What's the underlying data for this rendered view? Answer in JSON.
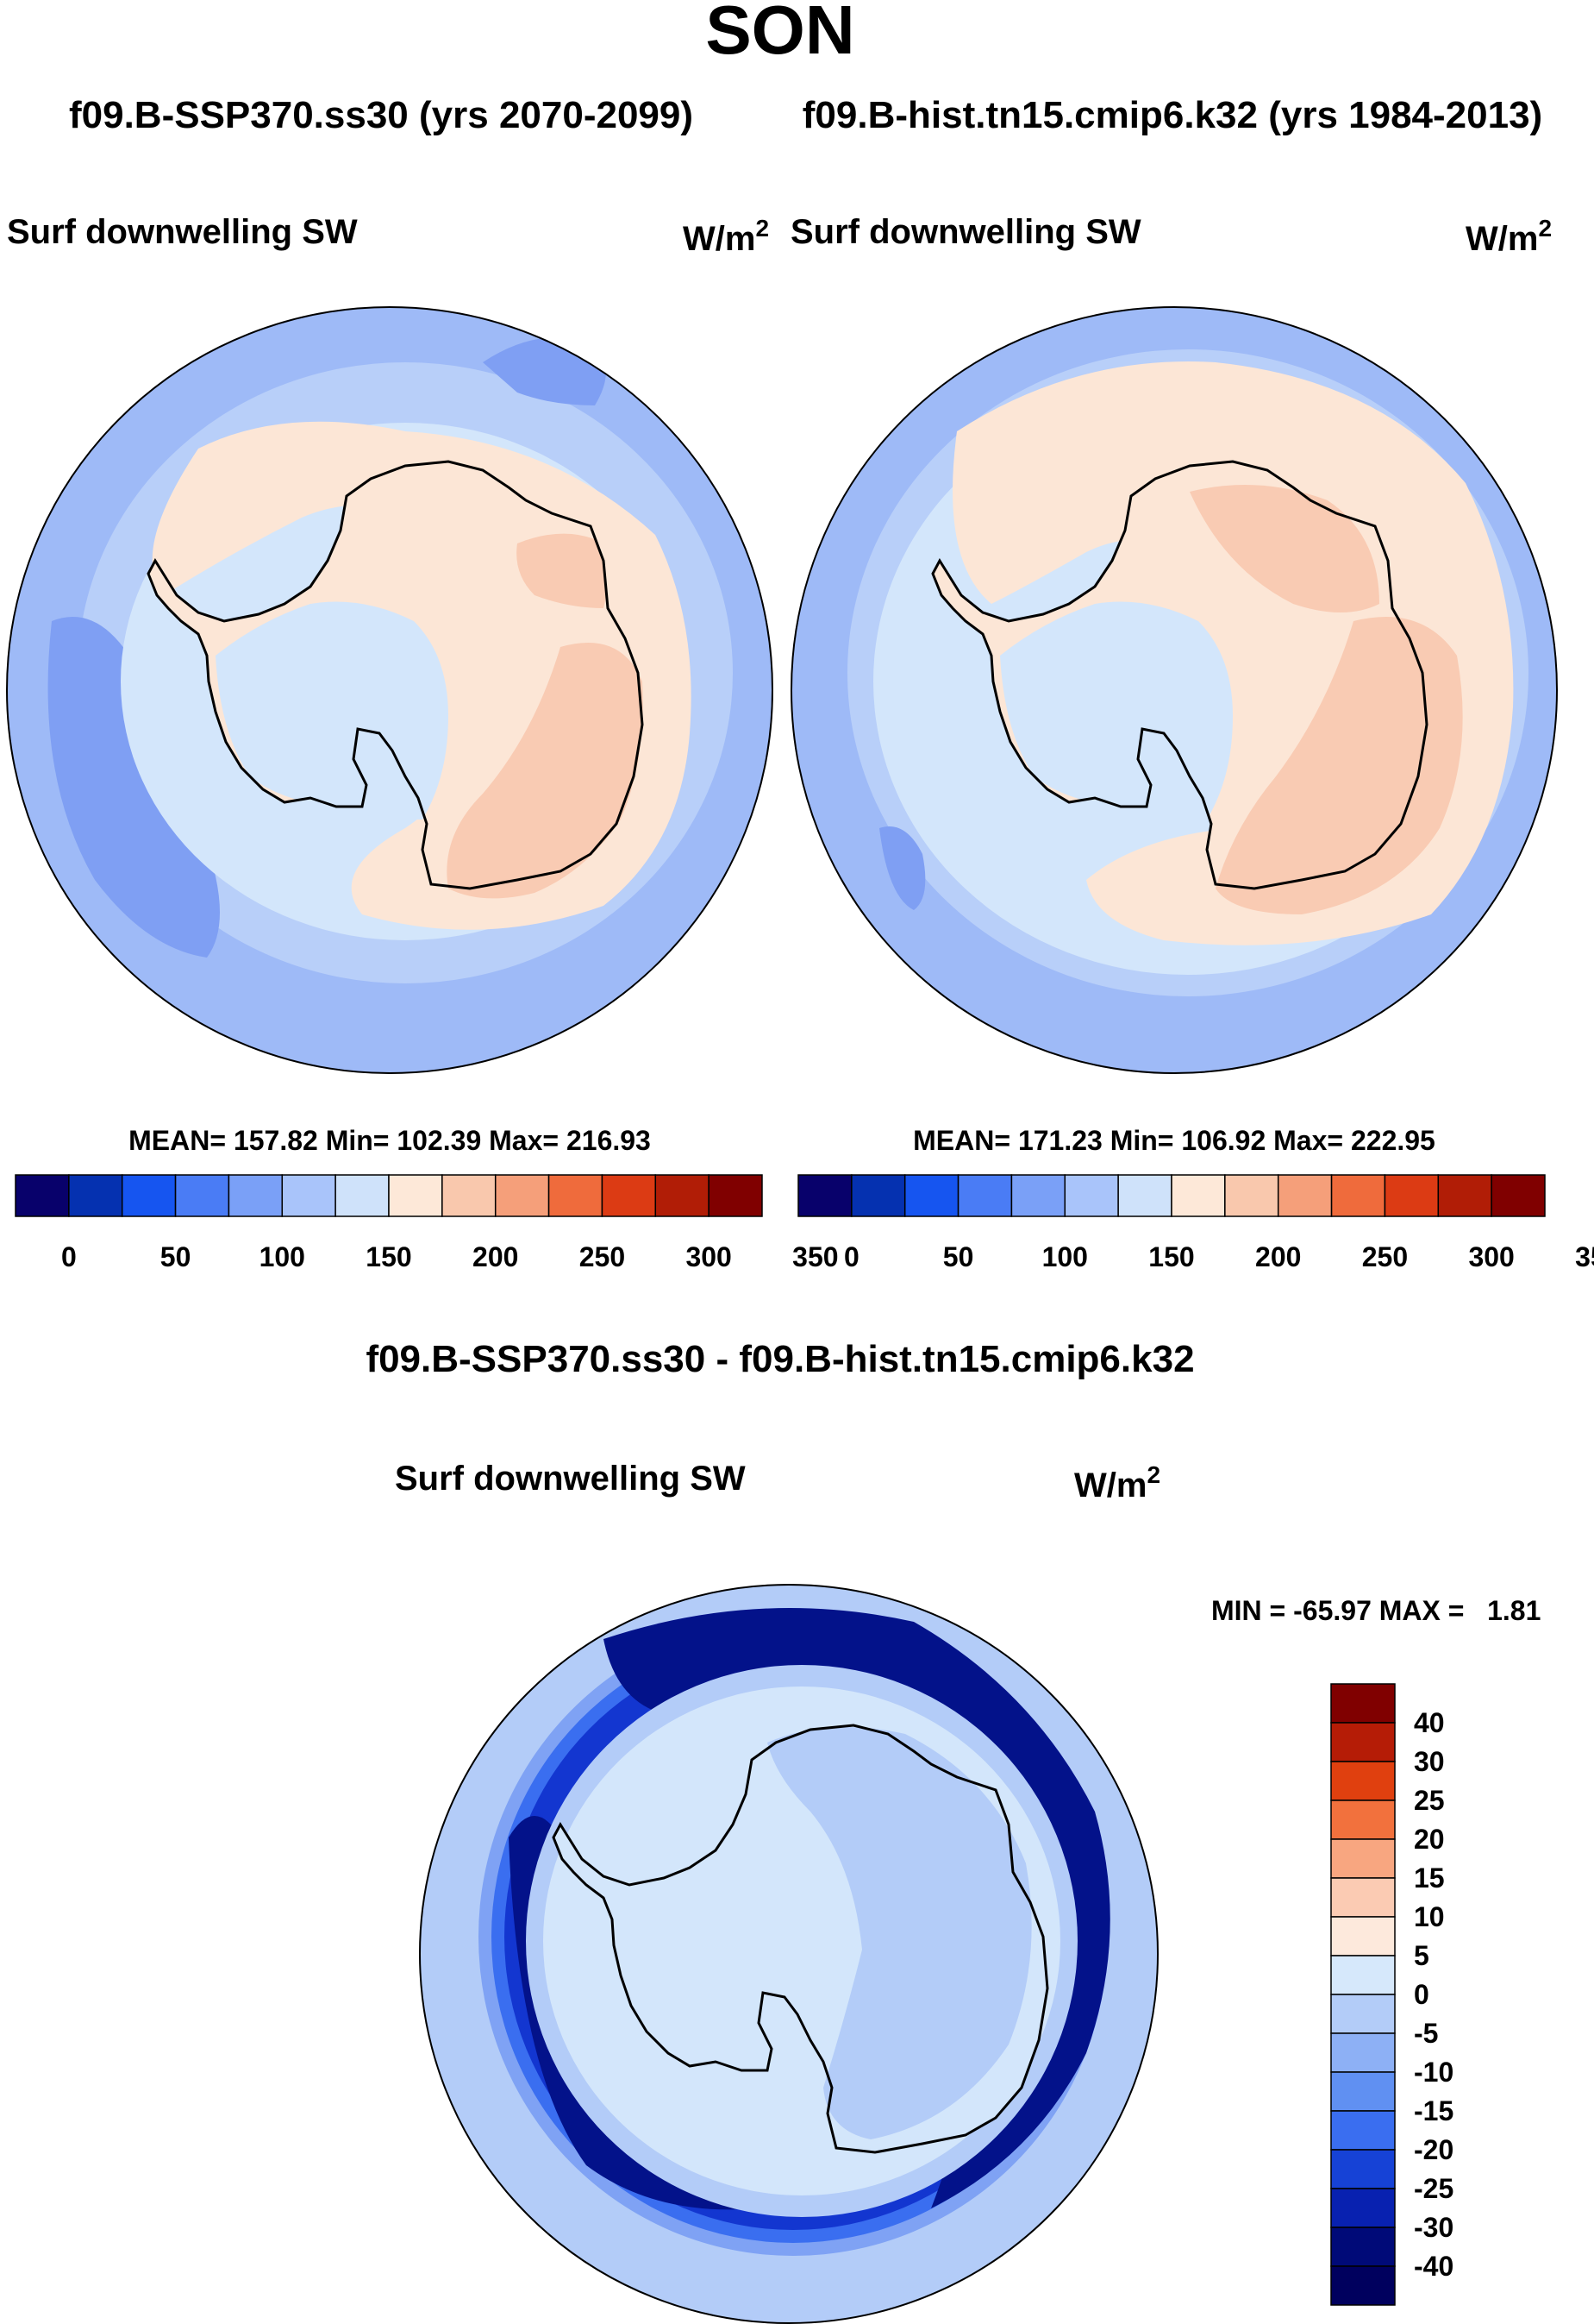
{
  "figure": {
    "season": "SON",
    "subtitle_left": "f09.B-SSP370.ss30 (yrs 2070-2099)",
    "subtitle_right": "f09.B-hist.tn15.cmip6.k32 (yrs 1984-2013)"
  },
  "panels": [
    {
      "variable": "Surf downwelling SW",
      "units_base": "W/m",
      "units_exp": "2",
      "stats": "MEAN= 157.82  Min= 102.39  Max= 216.93"
    },
    {
      "variable": "Surf downwelling SW",
      "units_base": "W/m",
      "units_exp": "2",
      "stats": "MEAN= 171.23  Min= 106.92  Max= 222.95"
    }
  ],
  "diff_panel": {
    "title": "f09.B-SSP370.ss30 - f09.B-hist.tn15.cmip6.k32",
    "variable": "Surf downwelling SW",
    "units_base": "W/m",
    "units_exp": "2",
    "minmax": "MIN = -65.97 MAX =   1.81"
  },
  "colorbar_abs": {
    "colors": [
      "#08016b",
      "#0531b0",
      "#1655f0",
      "#4a7cf5",
      "#7aa0f7",
      "#a9c4fa",
      "#cfe2fa",
      "#fde8d8",
      "#f9c8ad",
      "#f59f7a",
      "#ef6b3c",
      "#dc3b14",
      "#b11d06",
      "#800000"
    ],
    "labels": [
      "0",
      "50",
      "100",
      "150",
      "200",
      "250",
      "300",
      "350"
    ]
  },
  "colorbar_diff": {
    "colors_top_to_bottom": [
      "#800000",
      "#b51c06",
      "#e0400f",
      "#f2713d",
      "#f8a680",
      "#fbcbb3",
      "#fde9dc",
      "#d6e8fb",
      "#b3ccf8",
      "#8db0f5",
      "#6090f2",
      "#3a6ef0",
      "#1642d6",
      "#0821b0",
      "#000a78",
      "#00005e"
    ],
    "labels_top_to_bottom": [
      "40",
      "30",
      "25",
      "20",
      "15",
      "10",
      "5",
      "0",
      "-5",
      "-10",
      "-15",
      "-20",
      "-25",
      "-30",
      "-40"
    ]
  },
  "map_colors": {
    "ocean_far": "#9ebaf7",
    "ocean_mid": "#b8cff9",
    "ice": "#d3e6fb",
    "warm1": "#fce6d6",
    "warm2": "#f9cbb3",
    "blue_patch": "#7f9ff3",
    "diff_light": "#d3e6fb",
    "diff_mid": "#b3ccf8",
    "diff_ring1": "#7fa2f4",
    "diff_ring2": "#3a6ef0",
    "diff_ring3": "#1336d0",
    "diff_ring4": "#03128a"
  }
}
